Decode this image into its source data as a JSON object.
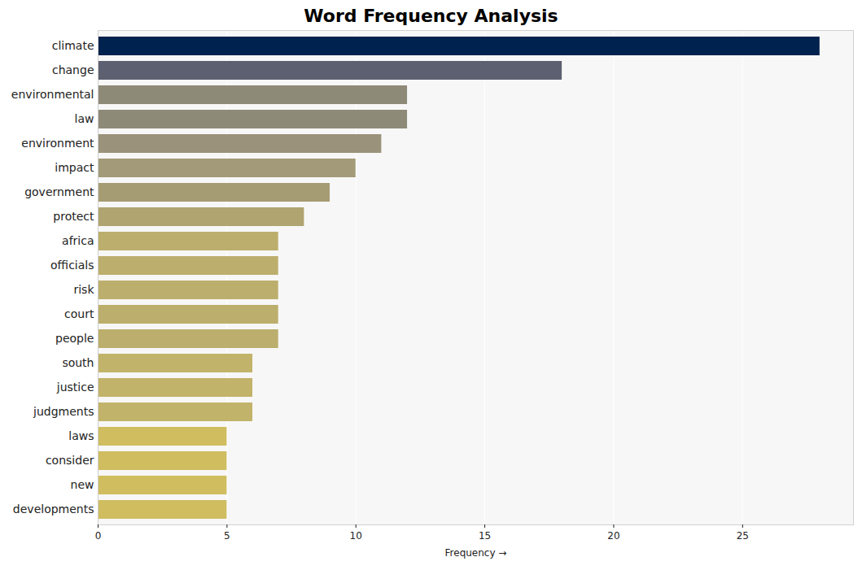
{
  "chart_data": {
    "type": "bar",
    "title": "Word Frequency Analysis",
    "orientation": "horizontal",
    "categories": [
      "climate",
      "change",
      "environmental",
      "law",
      "environment",
      "impact",
      "government",
      "protect",
      "africa",
      "officials",
      "risk",
      "court",
      "people",
      "south",
      "justice",
      "judgments",
      "laws",
      "consider",
      "new",
      "developments"
    ],
    "values": [
      28,
      18,
      12,
      12,
      11,
      10,
      9,
      8,
      7,
      7,
      7,
      7,
      7,
      6,
      6,
      6,
      5,
      5,
      5,
      5
    ],
    "colors": [
      "#00224e",
      "#5c6070",
      "#8e8a78",
      "#8e8a78",
      "#9a927a",
      "#a29a78",
      "#a69c74",
      "#b0a470",
      "#bcae6c",
      "#bcae6c",
      "#bcae6c",
      "#bcae6c",
      "#bcae6c",
      "#c2b36a",
      "#c2b36a",
      "#c2b36a",
      "#cfbd60",
      "#cfbd60",
      "#cfbd60",
      "#cfbd60"
    ],
    "x_label": "Frequency",
    "xlim": [
      0,
      29.3
    ],
    "xticks": [
      0,
      5,
      10,
      15,
      20,
      25
    ],
    "grid": true
  }
}
